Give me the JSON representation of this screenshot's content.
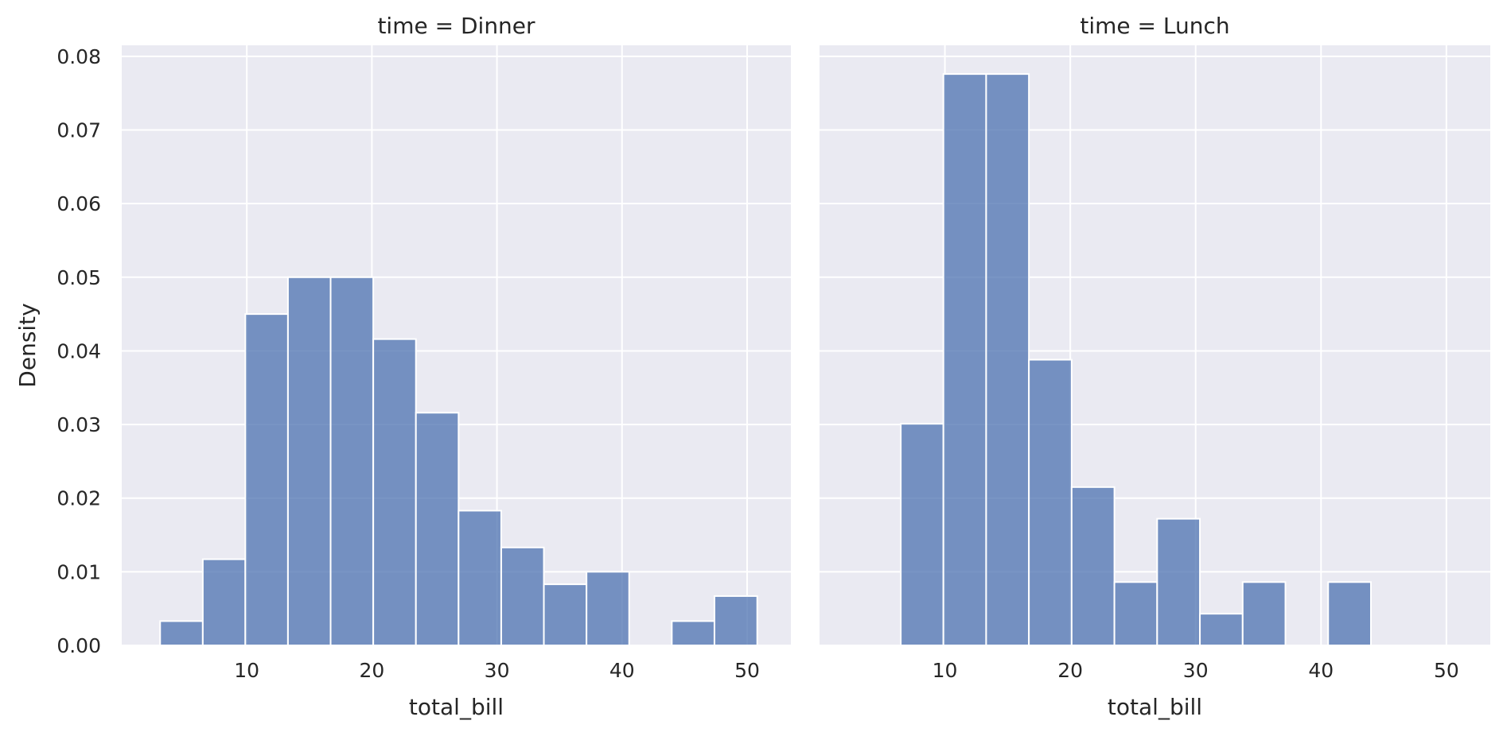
{
  "chart_data": [
    {
      "type": "bar",
      "title": "time = Dinner",
      "xlabel": "total_bill",
      "ylabel": "Density",
      "xlim": [
        0.0,
        53.5
      ],
      "ylim": [
        0,
        0.0815
      ],
      "xticks": [
        10,
        20,
        30,
        40,
        50
      ],
      "yticks": [
        0.0,
        0.01,
        0.02,
        0.03,
        0.04,
        0.05,
        0.06,
        0.07,
        0.08
      ],
      "bin_edges": [
        3.07,
        6.48,
        9.88,
        13.29,
        16.7,
        20.11,
        23.52,
        26.93,
        30.34,
        33.75,
        37.16,
        40.57,
        43.98,
        47.39,
        50.81
      ],
      "values": [
        0.0033,
        0.0117,
        0.045,
        0.05,
        0.05,
        0.0416,
        0.0316,
        0.0183,
        0.0133,
        0.0083,
        0.01,
        0.0,
        0.0033,
        0.0067
      ],
      "color": "#4c72b0"
    },
    {
      "type": "bar",
      "title": "time = Lunch",
      "xlabel": "total_bill",
      "ylabel": "",
      "xlim": [
        0.0,
        53.5
      ],
      "ylim": [
        0,
        0.0815
      ],
      "xticks": [
        10,
        20,
        30,
        40,
        50
      ],
      "yticks": [],
      "bin_edges": [
        3.07,
        6.48,
        9.88,
        13.29,
        16.7,
        20.11,
        23.52,
        26.93,
        30.34,
        33.75,
        37.16,
        40.57,
        43.98,
        47.39,
        50.81
      ],
      "values": [
        0.0,
        0.0301,
        0.0776,
        0.0776,
        0.0388,
        0.0215,
        0.0086,
        0.0172,
        0.0043,
        0.0086,
        0.0,
        0.0086,
        0.0,
        0.0
      ],
      "color": "#4c72b0"
    }
  ]
}
